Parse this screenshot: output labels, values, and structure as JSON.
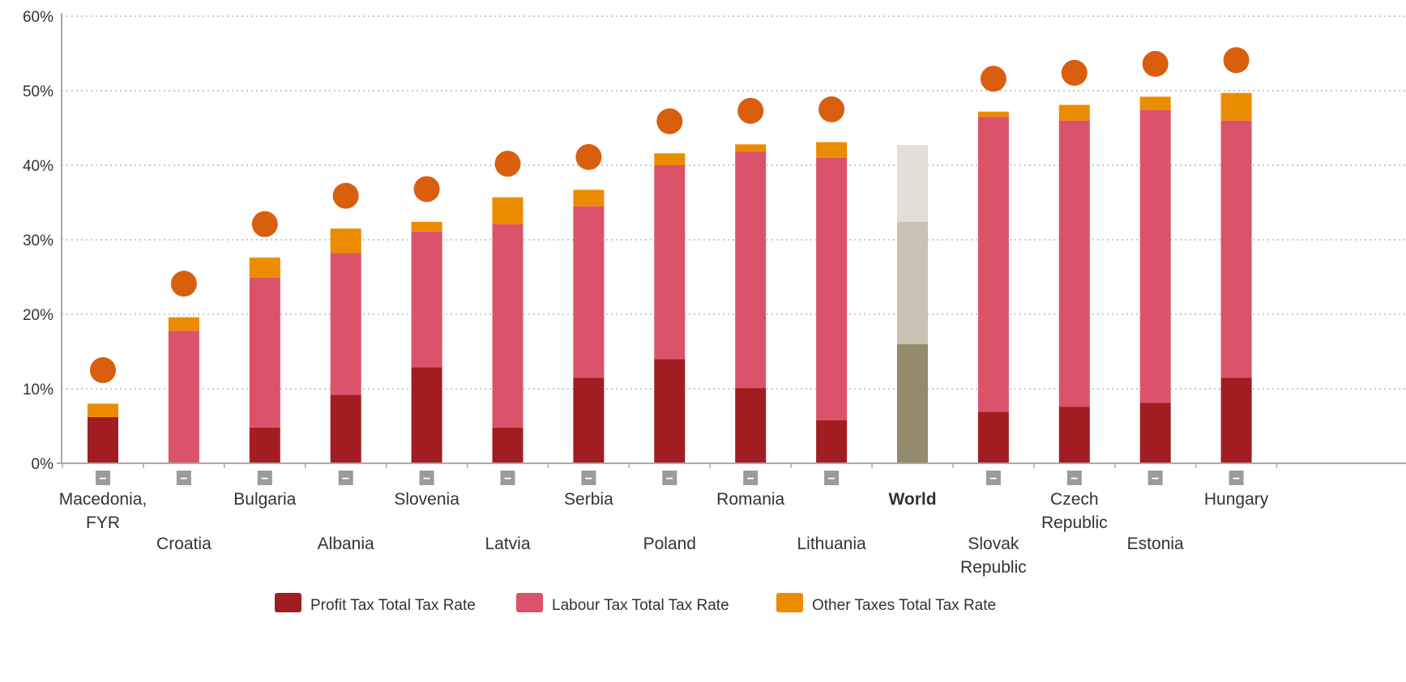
{
  "chart_data": {
    "type": "bar",
    "stacked": true,
    "title": "",
    "xlabel": "",
    "ylabel": "",
    "ylim": [
      0,
      60
    ],
    "y_ticks": [
      "0%",
      "10%",
      "20%",
      "30%",
      "40%",
      "50%",
      "60%"
    ],
    "grid": true,
    "legend_position": "bottom",
    "categories": [
      "Macedonia, FYR",
      "Croatia",
      "Bulgaria",
      "Albania",
      "Slovenia",
      "Latvia",
      "Serbia",
      "Poland",
      "Romania",
      "Lithuania",
      "World",
      "Slovak Republic",
      "Czech Republic",
      "Estonia",
      "Hungary"
    ],
    "category_label_lines": [
      [
        "Macedonia,",
        "FYR"
      ],
      [
        "Croatia"
      ],
      [
        "Bulgaria"
      ],
      [
        "Albania"
      ],
      [
        "Slovenia"
      ],
      [
        "Latvia"
      ],
      [
        "Serbia"
      ],
      [
        "Poland"
      ],
      [
        "Romania"
      ],
      [
        "Lithuania"
      ],
      [
        "World"
      ],
      [
        "Slovak",
        "Republic"
      ],
      [
        "Czech",
        "Republic"
      ],
      [
        "Estonia"
      ],
      [
        "Hungary"
      ]
    ],
    "highlight_category": "World",
    "series": [
      {
        "name": "Profit Tax Total Tax Rate",
        "color": "#a11d22",
        "highlight_color": "#958a6b",
        "values": [
          6.2,
          0.0,
          4.8,
          9.2,
          12.9,
          4.8,
          11.5,
          14.0,
          10.1,
          5.8,
          16.0,
          6.9,
          7.6,
          8.1,
          11.5
        ]
      },
      {
        "name": "Labour Tax Total Tax Rate",
        "color": "#db536a",
        "highlight_color": "#c9c2b5",
        "values": [
          0.0,
          17.8,
          20.1,
          19.0,
          18.2,
          27.3,
          23.0,
          26.0,
          31.7,
          35.2,
          16.4,
          39.6,
          38.4,
          39.3,
          34.5
        ]
      },
      {
        "name": "Other Taxes Total Tax Rate",
        "color": "#eb8c00",
        "highlight_color": "#e3ded7",
        "values": [
          1.8,
          1.8,
          2.7,
          3.3,
          1.3,
          3.6,
          2.2,
          1.6,
          1.0,
          2.1,
          10.3,
          0.7,
          2.1,
          1.8,
          3.7
        ]
      }
    ],
    "total_markers": {
      "color": "#d95f0e",
      "values": [
        12.5,
        24.1,
        32.1,
        35.9,
        36.8,
        40.2,
        41.1,
        45.9,
        47.3,
        47.5,
        null,
        51.6,
        52.4,
        53.6,
        54.1
      ]
    },
    "group_markers": {
      "color": "#9b9b9b",
      "symbol": "−",
      "show_for": [
        true,
        true,
        true,
        true,
        true,
        true,
        true,
        true,
        true,
        true,
        false,
        true,
        true,
        true,
        true
      ]
    }
  }
}
